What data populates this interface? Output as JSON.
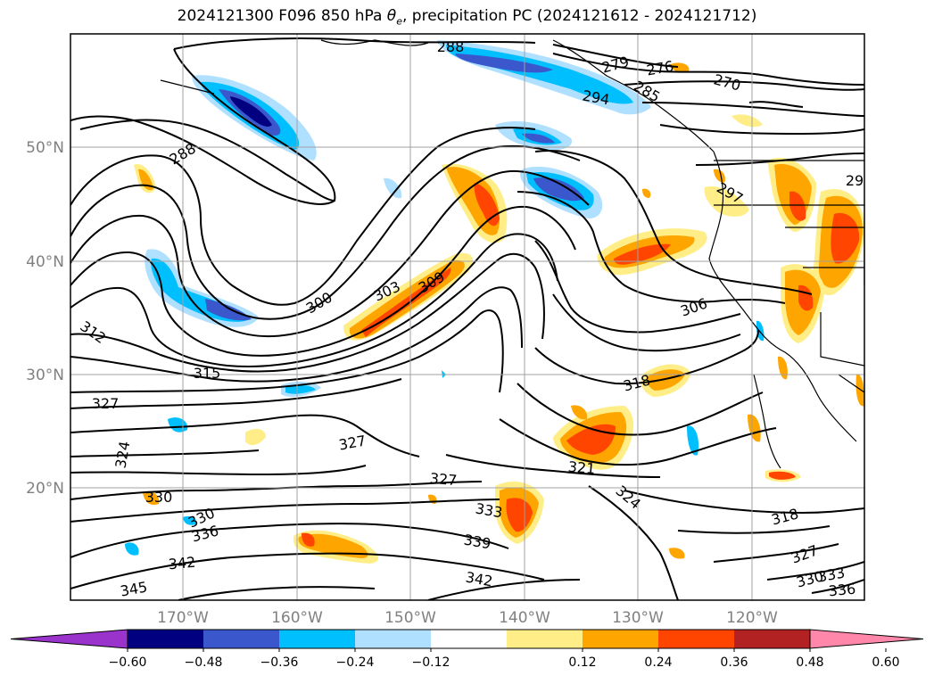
{
  "title": {
    "prefix": "2024121300 F096 850 hPa ",
    "theta": "θ",
    "theta_sub": "e",
    "suffix": ", precipitation PC (2024121612 - 2024121712)"
  },
  "lat_labels": [
    "50°N",
    "40°N",
    "30°N",
    "20°N"
  ],
  "lon_labels": [
    "170°W",
    "160°W",
    "150°W",
    "140°W",
    "130°W",
    "120°W"
  ],
  "colorbar": {
    "colors": [
      "#9933cc",
      "#000080",
      "#3a57cc",
      "#00bfff",
      "#b0e0ff",
      "#ffffff",
      "#ffee88",
      "#ffa500",
      "#ff4500",
      "#b22222",
      "#ff88aa"
    ],
    "tick_labels": [
      "−0.60",
      "−0.48",
      "−0.36",
      "−0.24",
      "−0.12",
      "0.12",
      "0.24",
      "0.36",
      "0.48",
      "0.60"
    ]
  },
  "contour_labels": [
    "288",
    "288",
    "279",
    "276",
    "270",
    "294",
    "285",
    "297",
    "29",
    "300",
    "303",
    "309",
    "306",
    "312",
    "315",
    "318",
    "327",
    "327",
    "324",
    "327",
    "321",
    "324",
    "318",
    "333",
    "330",
    "330",
    "336",
    "342",
    "339",
    "345",
    "342",
    "327",
    "330",
    "333",
    "336"
  ],
  "colors": {
    "contour": "#000000",
    "coast": "#000000",
    "grid": "#a0a0a0"
  }
}
